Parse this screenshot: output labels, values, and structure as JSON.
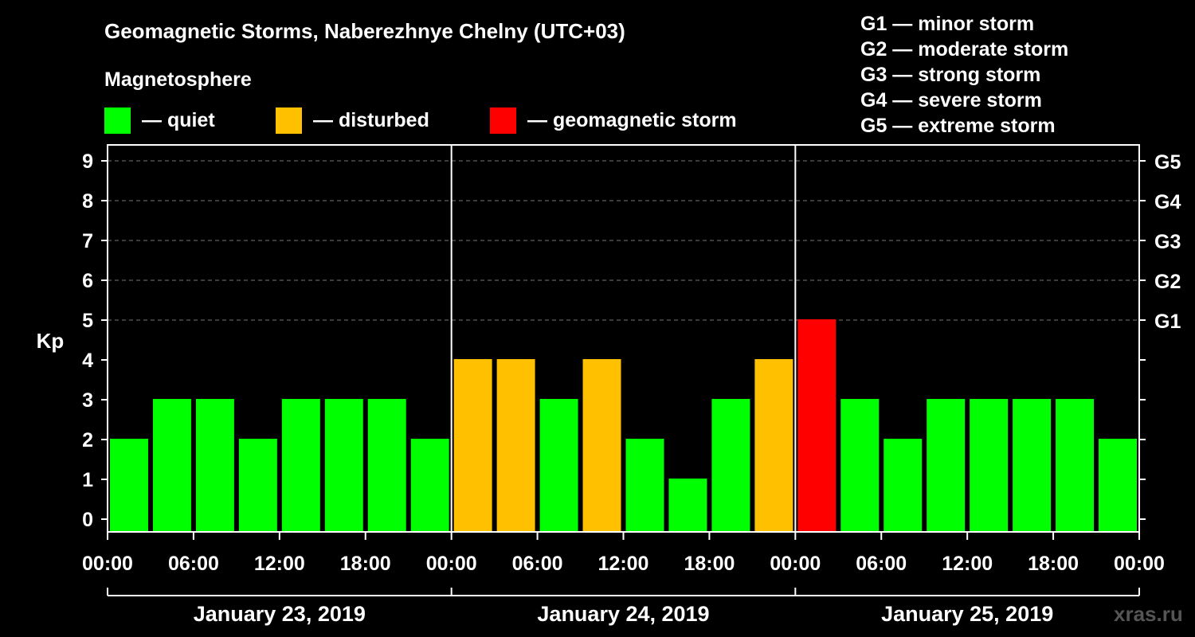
{
  "title": "Geomagnetic Storms, Naberezhnye Chelny (UTC+03)",
  "subtitle": "Magnetosphere",
  "legend": [
    {
      "label": "— quiet",
      "color": "#00ff00"
    },
    {
      "label": "— disturbed",
      "color": "#ffc000"
    },
    {
      "label": "— geomagnetic storm",
      "color": "#ff0000"
    }
  ],
  "storm_levels": [
    "G1 — minor storm",
    "G2 — moderate storm",
    "G3 — strong storm",
    "G4 — severe storm",
    "G5 — extreme storm"
  ],
  "watermark": "xras.ru",
  "chart_data": {
    "type": "bar",
    "ylabel": "Kp",
    "ylim": [
      0,
      9
    ],
    "y_ticks": [
      "0",
      "1",
      "2",
      "3",
      "4",
      "5",
      "6",
      "7",
      "8",
      "9"
    ],
    "right_axis_labels": {
      "5": "G1",
      "6": "G2",
      "7": "G3",
      "8": "G4",
      "9": "G5"
    },
    "x_tick_labels": [
      "00:00",
      "06:00",
      "12:00",
      "18:00",
      "00:00",
      "06:00",
      "12:00",
      "18:00",
      "00:00",
      "06:00",
      "12:00",
      "18:00",
      "00:00"
    ],
    "days": [
      "January 23, 2019",
      "January 24, 2019",
      "January 25, 2019"
    ],
    "values": [
      2,
      3,
      3,
      2,
      3,
      3,
      3,
      2,
      4,
      4,
      3,
      4,
      2,
      1,
      3,
      4,
      5,
      3,
      2,
      3,
      3,
      3,
      3,
      2
    ],
    "colors": {
      "quiet": "#00ff00",
      "disturbed": "#ffc000",
      "storm": "#ff0000"
    },
    "grid": true
  }
}
